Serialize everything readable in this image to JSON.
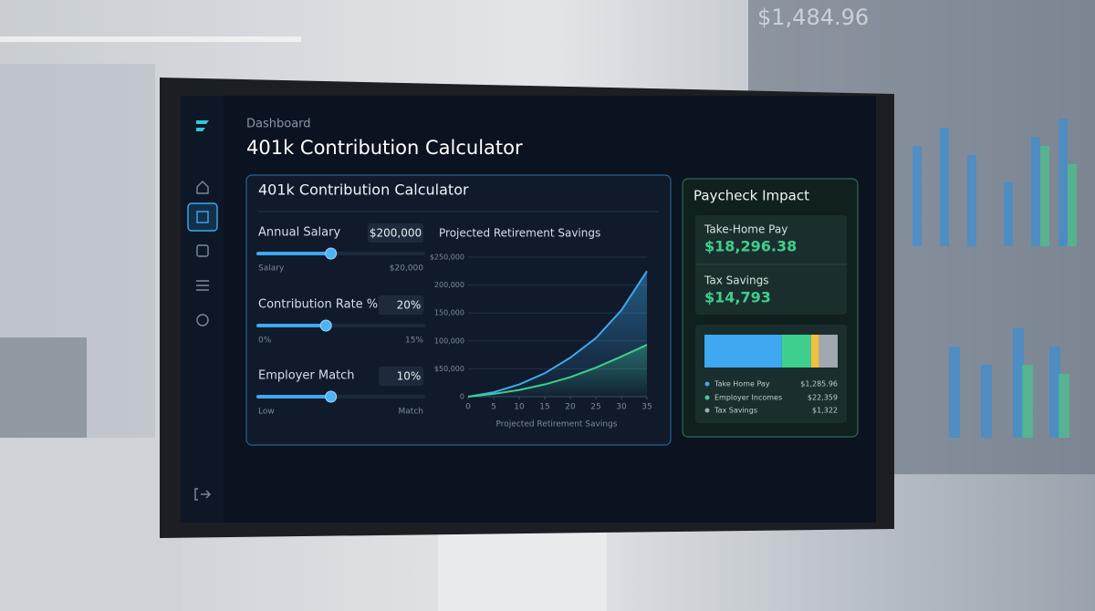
{
  "background_display": {
    "amount": "$1,484.96"
  },
  "header": {
    "breadcrumb": "Dashboard",
    "title": "401k Contribution Calculator"
  },
  "calculator": {
    "title": "401k Contribution Calculator",
    "sliders": [
      {
        "label": "Annual Salary",
        "value": "$200,000",
        "min_label": "Salary",
        "max_label": "$20,000",
        "fill": 44
      },
      {
        "label": "Contribution Rate %",
        "value": "20%",
        "min_label": "0%",
        "max_label": "15%",
        "fill": 41
      },
      {
        "label": "Employer Match",
        "value": "10%",
        "min_label": "Low",
        "max_label": "Match",
        "fill": 44
      }
    ]
  },
  "chart_data": {
    "type": "line",
    "title": "Projected Retirement Savings",
    "x_label": "Projected Retirement Savings",
    "x": [
      0,
      5,
      10,
      15,
      20,
      25,
      30,
      35
    ],
    "series": [
      {
        "color": "#3ea8f0",
        "values": [
          0,
          8000,
          22000,
          42000,
          70000,
          105000,
          155000,
          225000
        ]
      },
      {
        "color": "#3ecf8e",
        "values": [
          0,
          5000,
          12000,
          22000,
          35000,
          52000,
          72000,
          93000
        ]
      }
    ],
    "xlim": [
      0,
      35
    ],
    "xticks": [
      0,
      5,
      10,
      15,
      20,
      25,
      30,
      35
    ],
    "ylim": [
      0,
      250000
    ],
    "yticks": [
      0,
      {
        "value": 50000,
        "label": "$50,000"
      },
      {
        "value": 100000,
        "label": "100,000"
      },
      {
        "value": 150000,
        "label": "150,000"
      },
      {
        "value": 200000,
        "label": "200,000"
      },
      {
        "value": 250000,
        "label": "$250,000"
      }
    ],
    "grid": true
  },
  "paycheck": {
    "title": "Paycheck Impact",
    "cards": [
      {
        "label": "Take-Home Pay",
        "value": "$18,296.38"
      },
      {
        "label": "Tax Savings",
        "value": "$14,793"
      }
    ],
    "bar": [
      {
        "color": "#3ea8f0",
        "share": 58
      },
      {
        "color": "#3ecf8e",
        "share": 22
      },
      {
        "color": "#f0c040",
        "share": 6
      },
      {
        "color": "#a0a8b0",
        "share": 14
      }
    ],
    "legend": [
      {
        "label": "Take Home Pay",
        "value": "$1,285.96",
        "color": "#3ea8f0"
      },
      {
        "label": "Employer Incomes",
        "value": "$22,359",
        "color": "#3ecf8e"
      },
      {
        "label": "Tax Savings",
        "value": "$1,322",
        "color": "#a0a8b0"
      }
    ]
  }
}
